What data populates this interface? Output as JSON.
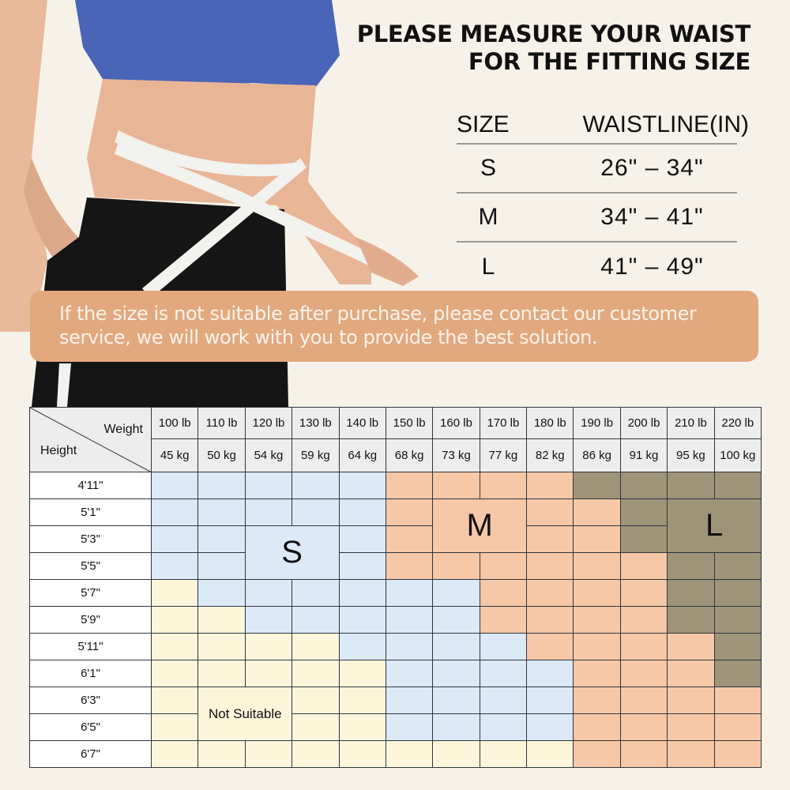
{
  "headline": [
    "PLEASE MEASURE YOUR WAIST",
    "FOR THE FITTING SIZE"
  ],
  "waist_table": {
    "headers": [
      "SIZE",
      "WAISTLINE(IN)"
    ],
    "rows": [
      {
        "size": "S",
        "range": "26\" – 34\""
      },
      {
        "size": "M",
        "range": "34\" – 41\""
      },
      {
        "size": "L",
        "range": "41\" – 49\""
      }
    ]
  },
  "banner": {
    "text": "If the size is not suitable after purchase, please contact our customer service, we will work with you to provide the best solution.",
    "color": "#e2a97f"
  },
  "grid": {
    "corner_weight": "Weight",
    "corner_height": "Height",
    "lb": [
      "100 lb",
      "110 lb",
      "120 lb",
      "130 lb",
      "140 lb",
      "150 lb",
      "160 lb",
      "170 lb",
      "180 lb",
      "190 lb",
      "200 lb",
      "210 lb",
      "220 lb"
    ],
    "kg": [
      "45 kg",
      "50 kg",
      "54 kg",
      "59 kg",
      "64 kg",
      "68 kg",
      "73 kg",
      "77 kg",
      "82 kg",
      "86 kg",
      "91 kg",
      "95 kg",
      "100 kg"
    ],
    "rows": [
      {
        "height": "4'11\"",
        "sizes": [
          "S",
          "S",
          "S",
          "S",
          "S",
          "M",
          "M",
          "M",
          "M",
          "L",
          "L",
          "L",
          "L"
        ]
      },
      {
        "height": "5'1\"",
        "sizes": [
          "S",
          "S",
          "S",
          "S",
          "S",
          "M",
          "M",
          "M",
          "M",
          "M",
          "L",
          "L",
          "L"
        ]
      },
      {
        "height": "5'3\"",
        "sizes": [
          "S",
          "S",
          "S",
          "S",
          "S",
          "M",
          "M",
          "M",
          "M",
          "M",
          "L",
          "L",
          "L"
        ]
      },
      {
        "height": "5'5\"",
        "sizes": [
          "S",
          "S",
          "S",
          "S",
          "S",
          "M",
          "M",
          "M",
          "M",
          "M",
          "M",
          "L",
          "L"
        ]
      },
      {
        "height": "5'7\"",
        "sizes": [
          "N",
          "S",
          "S",
          "S",
          "S",
          "S",
          "S",
          "M",
          "M",
          "M",
          "M",
          "L",
          "L"
        ]
      },
      {
        "height": "5'9\"",
        "sizes": [
          "N",
          "N",
          "S",
          "S",
          "S",
          "S",
          "S",
          "M",
          "M",
          "M",
          "M",
          "L",
          "L"
        ]
      },
      {
        "height": "5'11\"",
        "sizes": [
          "N",
          "N",
          "N",
          "N",
          "S",
          "S",
          "S",
          "S",
          "M",
          "M",
          "M",
          "M",
          "L"
        ]
      },
      {
        "height": "6'1\"",
        "sizes": [
          "N",
          "N",
          "N",
          "N",
          "N",
          "S",
          "S",
          "S",
          "S",
          "M",
          "M",
          "M",
          "L"
        ]
      },
      {
        "height": "6'3\"",
        "sizes": [
          "N",
          "N",
          "N",
          "N",
          "N",
          "S",
          "S",
          "S",
          "S",
          "M",
          "M",
          "M",
          "M"
        ]
      },
      {
        "height": "6'5\"",
        "sizes": [
          "N",
          "N",
          "N",
          "N",
          "N",
          "S",
          "S",
          "S",
          "S",
          "M",
          "M",
          "M",
          "M"
        ]
      },
      {
        "height": "6'7\"",
        "sizes": [
          "N",
          "N",
          "N",
          "N",
          "N",
          "N",
          "N",
          "N",
          "N",
          "M",
          "M",
          "M",
          "M"
        ]
      }
    ],
    "labels": {
      "S": "S",
      "M": "M",
      "L": "L",
      "N": "Not Suitable"
    },
    "colors": {
      "S": "#dce9f7",
      "M": "#f6c8a8",
      "L": "#a09478",
      "N": "#fdf5d9"
    }
  }
}
